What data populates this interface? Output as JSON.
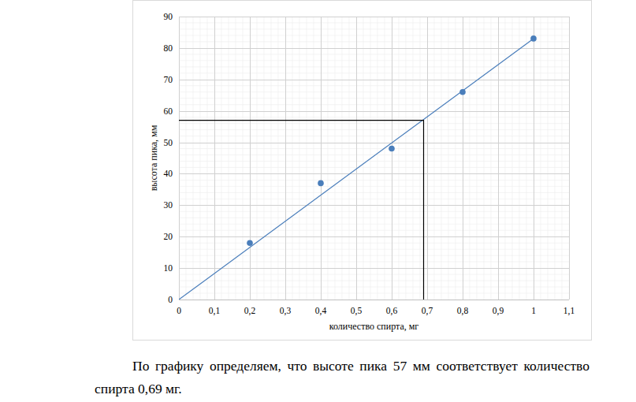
{
  "chart_data": {
    "type": "scatter",
    "x_label": "количество спирта, мг",
    "y_label": "высота пика, мм",
    "xlim": [
      0,
      1.1
    ],
    "ylim": [
      0,
      90
    ],
    "xticks": [
      0,
      {
        "value": 0.1,
        "label": "0,1"
      },
      {
        "value": 0.2,
        "label": "0,2"
      },
      {
        "value": 0.3,
        "label": "0,3"
      },
      {
        "value": 0.4,
        "label": "0,4"
      },
      {
        "value": 0.5,
        "label": "0,5"
      },
      {
        "value": 0.6,
        "label": "0,6"
      },
      {
        "value": 0.7,
        "label": "0,7"
      },
      {
        "value": 0.8,
        "label": "0,8"
      },
      {
        "value": 0.9,
        "label": "0,9"
      },
      1,
      {
        "value": 1.1,
        "label": "1,1"
      }
    ],
    "yticks": [
      0,
      10,
      20,
      30,
      40,
      50,
      60,
      70,
      80,
      90
    ],
    "grid": true,
    "series": [
      {
        "type": "scatter",
        "color": "#4a7ebb",
        "marker": "circle",
        "x": [
          0.2,
          0.4,
          0.6,
          0.8,
          1
        ],
        "values": [
          18,
          37,
          48,
          66,
          83
        ]
      },
      {
        "type": "line",
        "color": "#4a7ebb",
        "line_style": "solid",
        "x": [
          0,
          1
        ],
        "values": [
          0,
          83
        ]
      },
      {
        "type": "line",
        "color": "#000000",
        "line_style": "solid",
        "x": [
          0,
          0.69,
          0.69
        ],
        "values": [
          57,
          57,
          0
        ]
      }
    ]
  },
  "caption": "По графику определяем, что высоте пика 57 мм соответствует количество спирта 0,69 мг."
}
